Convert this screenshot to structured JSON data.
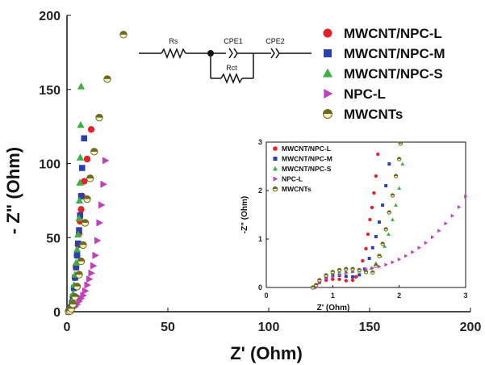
{
  "chart_data": [
    {
      "type": "scatter",
      "xlabel": "Z' (Ohm)",
      "ylabel": "- Z\" (Ohm)",
      "xlim": [
        0,
        200
      ],
      "ylim": [
        0,
        200
      ],
      "xticks": [
        0,
        50,
        100,
        150,
        200
      ],
      "yticks": [
        0,
        50,
        100,
        150,
        200
      ],
      "legend_position": "top-right",
      "series": [
        {
          "name": "MWCNT/NPC-L",
          "color": "#e8202a",
          "marker": "circle",
          "points": [
            [
              0.8,
              0.1
            ],
            [
              1.2,
              0.4
            ],
            [
              1.6,
              1.5
            ],
            [
              2.0,
              3
            ],
            [
              2.5,
              6
            ],
            [
              3.0,
              10
            ],
            [
              3.5,
              16
            ],
            [
              4.0,
              23
            ],
            [
              4.5,
              30
            ],
            [
              5.0,
              38
            ],
            [
              5.5,
              45
            ],
            [
              6.0,
              53
            ],
            [
              6.5,
              61
            ],
            [
              7.0,
              69
            ],
            [
              7.5,
              78
            ],
            [
              8.5,
              88
            ],
            [
              10,
              103
            ],
            [
              12,
              123
            ]
          ]
        },
        {
          "name": "MWCNT/NPC-M",
          "color": "#2a3fb0",
          "marker": "square",
          "points": [
            [
              0.8,
              0.1
            ],
            [
              1.2,
              0.4
            ],
            [
              1.6,
              1.5
            ],
            [
              2.0,
              3
            ],
            [
              2.5,
              6
            ],
            [
              3.0,
              10
            ],
            [
              3.5,
              16
            ],
            [
              4.0,
              23
            ],
            [
              4.5,
              30
            ],
            [
              5.0,
              38
            ],
            [
              5.5,
              46
            ],
            [
              6.0,
              55
            ],
            [
              6.5,
              65
            ],
            [
              7.0,
              78
            ],
            [
              7.5,
              97
            ],
            [
              8.5,
              117
            ]
          ]
        },
        {
          "name": "MWCNT/NPC-S",
          "color": "#3cb043",
          "marker": "triangle-up",
          "points": [
            [
              0.8,
              0.1
            ],
            [
              1.2,
              0.4
            ],
            [
              1.6,
              1.5
            ],
            [
              2.0,
              3
            ],
            [
              2.5,
              7
            ],
            [
              3.0,
              12
            ],
            [
              3.5,
              18
            ],
            [
              4.0,
              25
            ],
            [
              4.5,
              33
            ],
            [
              5.0,
              42
            ],
            [
              5.5,
              52
            ],
            [
              6.0,
              63
            ],
            [
              6.2,
              75
            ],
            [
              6.4,
              87
            ],
            [
              6.6,
              104
            ],
            [
              6.8,
              126
            ],
            [
              7.0,
              152
            ]
          ]
        },
        {
          "name": "NPC-L",
          "color": "#c23fbf",
          "marker": "triangle-right",
          "points": [
            [
              1.0,
              0.2
            ],
            [
              1.5,
              0.8
            ],
            [
              2.0,
              1.5
            ],
            [
              3.0,
              2.5
            ],
            [
              4.0,
              3.5
            ],
            [
              5.0,
              5
            ],
            [
              6.0,
              7
            ],
            [
              7.0,
              9
            ],
            [
              8.0,
              11
            ],
            [
              9.0,
              14
            ],
            [
              10.0,
              18
            ],
            [
              11.0,
              22
            ],
            [
              12.0,
              26
            ],
            [
              13.0,
              31
            ],
            [
              14.0,
              38
            ],
            [
              15.0,
              48
            ],
            [
              16.0,
              60
            ],
            [
              17.0,
              72
            ],
            [
              18.0,
              86
            ],
            [
              19.0,
              102
            ]
          ]
        },
        {
          "name": "MWCNTs",
          "color": "#6b6b1e",
          "marker": "half-filled-circle",
          "points": [
            [
              0.8,
              0.1
            ],
            [
              1.5,
              0.5
            ],
            [
              2.2,
              2
            ],
            [
              3.0,
              5
            ],
            [
              4.0,
              10
            ],
            [
              5.0,
              17
            ],
            [
              6.0,
              25
            ],
            [
              7.0,
              34
            ],
            [
              8.0,
              45
            ],
            [
              9.0,
              60
            ],
            [
              10.0,
              76
            ],
            [
              11.5,
              90
            ],
            [
              13.5,
              108
            ],
            [
              16.0,
              131
            ],
            [
              20.0,
              157
            ],
            [
              28.0,
              187
            ]
          ]
        }
      ]
    },
    {
      "type": "scatter",
      "xlabel": "Z' (Ohm)",
      "ylabel": "-Z\" (Ohm)",
      "xlim": [
        0,
        3
      ],
      "ylim": [
        0,
        3
      ],
      "xticks": [
        0,
        1,
        2,
        3
      ],
      "yticks": [
        0,
        1,
        2,
        3
      ],
      "legend_position": "top-left",
      "series": [
        {
          "name": "MWCNT/NPC-L",
          "color": "#e8202a",
          "marker": "circle",
          "points": [
            [
              0.72,
              0.0
            ],
            [
              0.75,
              0.05
            ],
            [
              0.8,
              0.1
            ],
            [
              0.9,
              0.15
            ],
            [
              1.0,
              0.17
            ],
            [
              1.1,
              0.17
            ],
            [
              1.2,
              0.14
            ],
            [
              1.3,
              0.15
            ],
            [
              1.35,
              0.22
            ],
            [
              1.4,
              0.35
            ],
            [
              1.45,
              0.55
            ],
            [
              1.5,
              0.8
            ],
            [
              1.53,
              1.1
            ],
            [
              1.56,
              1.4
            ],
            [
              1.59,
              1.65
            ],
            [
              1.62,
              1.95
            ],
            [
              1.65,
              2.3
            ],
            [
              1.68,
              2.75
            ]
          ]
        },
        {
          "name": "MWCNT/NPC-M",
          "color": "#2a3fb0",
          "marker": "square",
          "points": [
            [
              0.72,
              0.0
            ],
            [
              0.75,
              0.05
            ],
            [
              0.8,
              0.12
            ],
            [
              0.9,
              0.2
            ],
            [
              1.0,
              0.24
            ],
            [
              1.1,
              0.25
            ],
            [
              1.2,
              0.23
            ],
            [
              1.3,
              0.22
            ],
            [
              1.4,
              0.26
            ],
            [
              1.48,
              0.38
            ],
            [
              1.55,
              0.6
            ],
            [
              1.6,
              0.82
            ],
            [
              1.65,
              1.05
            ],
            [
              1.7,
              1.35
            ],
            [
              1.75,
              1.7
            ],
            [
              1.8,
              2.1
            ],
            [
              1.85,
              2.55
            ]
          ]
        },
        {
          "name": "MWCNT/NPC-S",
          "color": "#3cb043",
          "marker": "triangle-up",
          "points": [
            [
              0.72,
              0.0
            ],
            [
              0.75,
              0.05
            ],
            [
              0.8,
              0.15
            ],
            [
              0.9,
              0.25
            ],
            [
              1.0,
              0.3
            ],
            [
              1.1,
              0.32
            ],
            [
              1.2,
              0.33
            ],
            [
              1.3,
              0.33
            ],
            [
              1.4,
              0.34
            ],
            [
              1.5,
              0.35
            ],
            [
              1.58,
              0.4
            ],
            [
              1.65,
              0.5
            ],
            [
              1.72,
              0.65
            ],
            [
              1.78,
              0.85
            ],
            [
              1.84,
              1.1
            ],
            [
              1.9,
              1.4
            ],
            [
              1.95,
              1.7
            ],
            [
              2.0,
              2.05
            ],
            [
              2.05,
              2.55
            ]
          ]
        },
        {
          "name": "NPC-L",
          "color": "#c23fbf",
          "marker": "triangle-right",
          "points": [
            [
              0.75,
              0.0
            ],
            [
              0.8,
              0.1
            ],
            [
              0.9,
              0.18
            ],
            [
              1.0,
              0.22
            ],
            [
              1.1,
              0.26
            ],
            [
              1.2,
              0.3
            ],
            [
              1.3,
              0.33
            ],
            [
              1.4,
              0.36
            ],
            [
              1.5,
              0.38
            ],
            [
              1.6,
              0.4
            ],
            [
              1.7,
              0.43
            ],
            [
              1.8,
              0.47
            ],
            [
              1.9,
              0.52
            ],
            [
              2.0,
              0.58
            ],
            [
              2.1,
              0.65
            ],
            [
              2.2,
              0.73
            ],
            [
              2.3,
              0.82
            ],
            [
              2.4,
              0.92
            ],
            [
              2.5,
              1.04
            ],
            [
              2.6,
              1.17
            ],
            [
              2.7,
              1.32
            ],
            [
              2.8,
              1.48
            ],
            [
              2.9,
              1.66
            ],
            [
              3.0,
              1.88
            ]
          ]
        },
        {
          "name": "MWCNTs",
          "color": "#6b6b1e",
          "marker": "half-filled-circle",
          "points": [
            [
              0.7,
              0.0
            ],
            [
              0.75,
              0.05
            ],
            [
              0.8,
              0.15
            ],
            [
              0.9,
              0.25
            ],
            [
              1.0,
              0.32
            ],
            [
              1.1,
              0.36
            ],
            [
              1.2,
              0.38
            ],
            [
              1.3,
              0.38
            ],
            [
              1.4,
              0.36
            ],
            [
              1.5,
              0.32
            ],
            [
              1.6,
              0.31
            ],
            [
              1.65,
              0.45
            ],
            [
              1.7,
              0.65
            ],
            [
              1.75,
              0.9
            ],
            [
              1.8,
              1.2
            ],
            [
              1.85,
              1.55
            ],
            [
              1.9,
              1.9
            ],
            [
              1.95,
              2.3
            ],
            [
              2.0,
              2.65
            ],
            [
              2.02,
              2.97
            ]
          ]
        }
      ]
    }
  ],
  "circuit": {
    "labels": [
      "Rs",
      "CPE1",
      "CPE2",
      "Rct"
    ]
  }
}
